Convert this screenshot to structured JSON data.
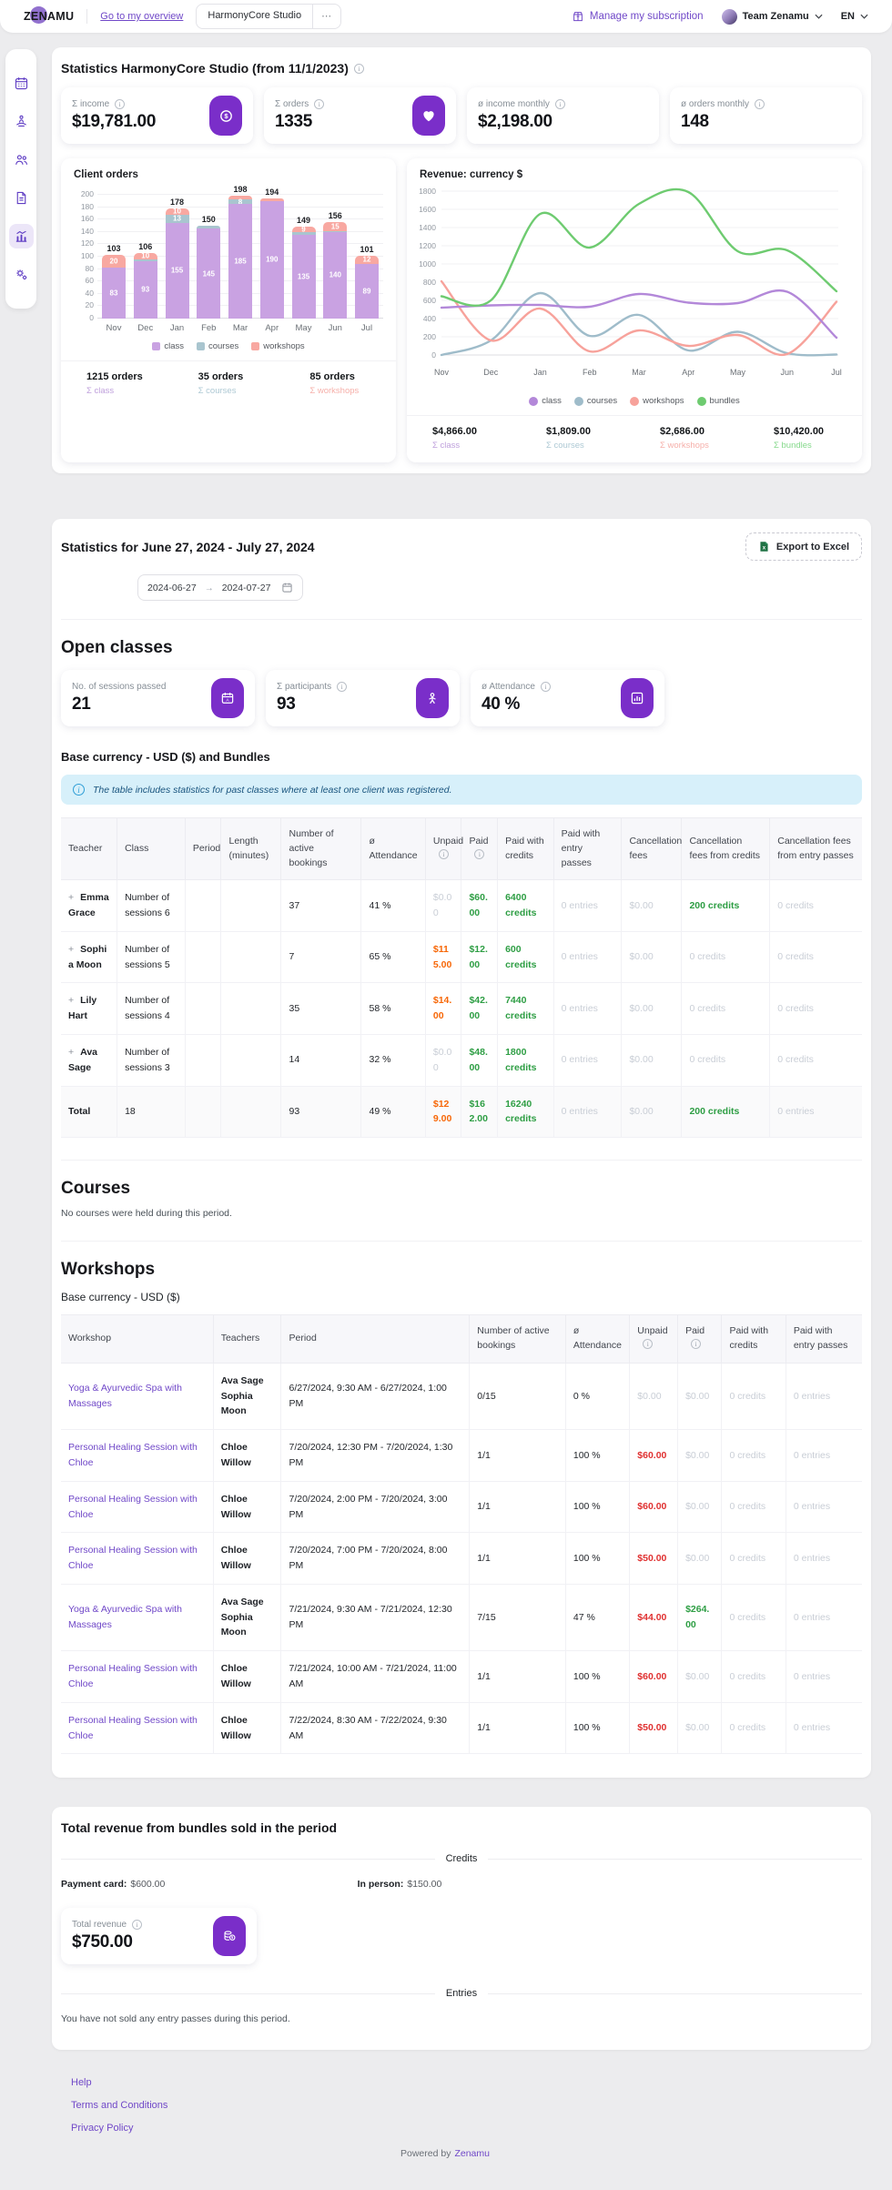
{
  "colors": {
    "accent_purple": "#7a2ec9",
    "link_purple": "#7048c8",
    "paid_green": "#2e9e44",
    "unpaid_orange": "#f76707",
    "unpaid_red": "#e03131",
    "banner_blue_bg": "#d7f0fa"
  },
  "header": {
    "logo": "ZENAMU",
    "overview_link": "Go to my overview",
    "studio": "HarmonyCore Studio",
    "more": "⋯",
    "subscription": "Manage my subscription",
    "team": "Team Zenamu",
    "lang": "EN"
  },
  "sidebar": {
    "items": [
      {
        "icon": "calendar"
      },
      {
        "icon": "yoga"
      },
      {
        "icon": "clients"
      },
      {
        "icon": "documents"
      },
      {
        "icon": "statistics",
        "active": true
      },
      {
        "icon": "settings"
      }
    ]
  },
  "overview": {
    "title": "Statistics HarmonyCore Studio (from 11/1/2023)",
    "kpis": [
      {
        "label": "Σ income",
        "value": "$19,781.00",
        "icon": "dollar-coin"
      },
      {
        "label": "Σ orders",
        "value": "1335",
        "icon": "heart"
      },
      {
        "label": "ø income monthly",
        "value": "$2,198.00"
      },
      {
        "label": "ø orders monthly",
        "value": "148"
      }
    ],
    "orders_summary": [
      {
        "value": "1215 orders",
        "label": "Σ class"
      },
      {
        "value": "35 orders",
        "label": "Σ courses"
      },
      {
        "value": "85 orders",
        "label": "Σ workshops"
      }
    ],
    "revenue_summary": [
      {
        "value": "$4,866.00",
        "label": "Σ class"
      },
      {
        "value": "$1,809.00",
        "label": "Σ courses"
      },
      {
        "value": "$2,686.00",
        "label": "Σ workshops"
      },
      {
        "value": "$10,420.00",
        "label": "Σ bundles"
      }
    ]
  },
  "chart_data": [
    {
      "type": "bar",
      "title": "Client orders",
      "categories": [
        "Nov",
        "Dec",
        "Jan",
        "Feb",
        "Mar",
        "Apr",
        "May",
        "Jun",
        "Jul"
      ],
      "series": [
        {
          "name": "class",
          "color": "#c9a2e2",
          "values": [
            83,
            93,
            155,
            145,
            185,
            190,
            135,
            140,
            89
          ]
        },
        {
          "name": "courses",
          "color": "#a9c5cf",
          "values": [
            0,
            3,
            13,
            5,
            8,
            0,
            5,
            1,
            0
          ]
        },
        {
          "name": "workshops",
          "color": "#f8a8a1",
          "values": [
            20,
            10,
            10,
            0,
            5,
            4,
            9,
            15,
            12
          ]
        }
      ],
      "totals": [
        103,
        106,
        178,
        150,
        198,
        194,
        149,
        156,
        101
      ],
      "ylim": [
        0,
        200
      ],
      "ytick": 20,
      "label_min": 8,
      "legend_position": "bottom",
      "grid": true
    },
    {
      "type": "line",
      "title": "Revenue: currency $",
      "x": [
        "Nov",
        "Dec",
        "Jan",
        "Feb",
        "Mar",
        "Apr",
        "May",
        "Jun",
        "Jul"
      ],
      "series": [
        {
          "name": "courses",
          "color": "#9fbcca",
          "values": [
            0,
            160,
            680,
            210,
            440,
            50,
            255,
            20,
            5
          ]
        },
        {
          "name": "workshops",
          "color": "#f7a29b",
          "values": [
            810,
            160,
            510,
            40,
            270,
            100,
            220,
            10,
            585
          ]
        },
        {
          "name": "class",
          "color": "#b388d9",
          "values": [
            520,
            545,
            550,
            530,
            670,
            575,
            570,
            695,
            190
          ]
        },
        {
          "name": "bundles",
          "color": "#6ecb70",
          "values": [
            645,
            600,
            1550,
            1180,
            1660,
            1790,
            1140,
            1150,
            700
          ]
        }
      ],
      "legend_order": [
        "class",
        "courses",
        "workshops",
        "bundles"
      ],
      "ylim": [
        0,
        1800
      ],
      "ytick": 200,
      "legend_position": "bottom",
      "grid": true
    }
  ],
  "period": {
    "title": "Statistics for June 27, 2024 - July 27, 2024",
    "export_label": "Export to Excel",
    "date_from": "2024-06-27",
    "date_to": "2024-07-27",
    "open_classes": {
      "title": "Open classes",
      "kpis": [
        {
          "label": "No. of sessions passed",
          "value": "21",
          "icon": "calendar-badge",
          "info": false
        },
        {
          "label": "Σ participants",
          "value": "93",
          "icon": "participants-badge",
          "info": true
        },
        {
          "label": "ø Attendance",
          "value": "40 %",
          "icon": "attendance-badge",
          "info": true
        }
      ]
    },
    "base_currency_title": "Base currency - USD ($) and Bundles",
    "banner": "The table includes statistics for past classes where at least one client was registered.",
    "classes_table": {
      "widths": [
        7,
        8.5,
        4.5,
        7.5,
        10,
        8,
        4.5,
        4.5,
        7,
        8.5,
        7.5,
        11,
        11.5
      ],
      "headers": [
        "Teacher",
        "Class",
        "Period",
        {
          "t": "Length (minutes)"
        },
        {
          "t": "Number of active bookings"
        },
        {
          "t": "ø Attendance"
        },
        {
          "t": "Unpaid",
          "info": true
        },
        {
          "t": "Paid",
          "info": true
        },
        {
          "t": "Paid with credits"
        },
        {
          "t": "Paid with entry passes"
        },
        {
          "t": "Cancellation fees"
        },
        {
          "t": "Cancellation fees from credits"
        },
        {
          "t": "Cancellation fees from entry passes"
        }
      ],
      "rows": [
        {
          "cells": [
            {
              "t": "Emma Grace",
              "c": "teacher",
              "plus": true
            },
            "Number of sessions 6",
            "",
            "",
            "37",
            "41 %",
            {
              "t": "$0.00",
              "c": "muted"
            },
            {
              "t": "$60.00",
              "c": "green"
            },
            {
              "t": "6400 credits",
              "c": "green"
            },
            {
              "t": "0 entries",
              "c": "muted"
            },
            {
              "t": "$0.00",
              "c": "muted"
            },
            {
              "t": "200 credits",
              "c": "green"
            },
            {
              "t": "0 credits",
              "c": "muted"
            }
          ]
        },
        {
          "cells": [
            {
              "t": "Sophia Moon",
              "c": "teacher",
              "plus": true
            },
            "Number of sessions 5",
            "",
            "",
            "7",
            "65 %",
            {
              "t": "$115.00",
              "c": "orange"
            },
            {
              "t": "$12.00",
              "c": "green"
            },
            {
              "t": "600 credits",
              "c": "green"
            },
            {
              "t": "0 entries",
              "c": "muted"
            },
            {
              "t": "$0.00",
              "c": "muted"
            },
            {
              "t": "0 credits",
              "c": "muted"
            },
            {
              "t": "0 credits",
              "c": "muted"
            }
          ]
        },
        {
          "cells": [
            {
              "t": "Lily Hart",
              "c": "teacher",
              "plus": true
            },
            "Number of sessions 4",
            "",
            "",
            "35",
            "58 %",
            {
              "t": "$14.00",
              "c": "orange"
            },
            {
              "t": "$42.00",
              "c": "green"
            },
            {
              "t": "7440 credits",
              "c": "green"
            },
            {
              "t": "0 entries",
              "c": "muted"
            },
            {
              "t": "$0.00",
              "c": "muted"
            },
            {
              "t": "0 credits",
              "c": "muted"
            },
            {
              "t": "0 credits",
              "c": "muted"
            }
          ]
        },
        {
          "cells": [
            {
              "t": "Ava Sage",
              "c": "teacher",
              "plus": true
            },
            "Number of sessions 3",
            "",
            "",
            "14",
            "32 %",
            {
              "t": "$0.00",
              "c": "muted"
            },
            {
              "t": "$48.00",
              "c": "green"
            },
            {
              "t": "1800 credits",
              "c": "green"
            },
            {
              "t": "0 entries",
              "c": "muted"
            },
            {
              "t": "$0.00",
              "c": "muted"
            },
            {
              "t": "0 credits",
              "c": "muted"
            },
            {
              "t": "0 credits",
              "c": "muted"
            }
          ]
        },
        {
          "total": true,
          "cells": [
            {
              "t": "Total",
              "c": "teacher"
            },
            "18",
            "",
            "",
            "93",
            "49 %",
            {
              "t": "$129.00",
              "c": "orange"
            },
            {
              "t": "$162.00",
              "c": "green"
            },
            {
              "t": "16240 credits",
              "c": "green"
            },
            {
              "t": "0 entries",
              "c": "muted"
            },
            {
              "t": "$0.00",
              "c": "muted"
            },
            {
              "t": "200 credits",
              "c": "green"
            },
            {
              "t": "0 entries",
              "c": "muted"
            }
          ]
        }
      ]
    },
    "courses": {
      "title": "Courses",
      "empty": "No courses were held during this period."
    },
    "workshops": {
      "title": "Workshops",
      "subtitle": "Base currency - USD ($)",
      "table": {
        "widths": [
          19,
          8.5,
          23.5,
          12,
          8,
          6,
          5.5,
          8,
          9.5
        ],
        "headers": [
          "Workshop",
          "Teachers",
          "Period",
          {
            "t": "Number of active bookings"
          },
          {
            "t": "ø Attendance"
          },
          {
            "t": "Unpaid",
            "info": true
          },
          {
            "t": "Paid",
            "info": true
          },
          {
            "t": "Paid with credits"
          },
          {
            "t": "Paid with entry passes"
          }
        ],
        "rows": [
          {
            "cells": [
              {
                "t": "Yoga & Ayurvedic Spa with Massages",
                "c": "link"
              },
              {
                "t": "Ava Sage Sophia Moon",
                "c": "teacher"
              },
              "6/27/2024, 9:30 AM - 6/27/2024, 1:00 PM",
              "0/15",
              "0 %",
              {
                "t": "$0.00",
                "c": "muted"
              },
              {
                "t": "$0.00",
                "c": "muted"
              },
              {
                "t": "0 credits",
                "c": "muted"
              },
              {
                "t": "0 entries",
                "c": "muted"
              }
            ]
          },
          {
            "cells": [
              {
                "t": "Personal Healing Session with Chloe",
                "c": "link"
              },
              {
                "t": "Chloe Willow",
                "c": "teacher"
              },
              "7/20/2024, 12:30 PM - 7/20/2024, 1:30 PM",
              "1/1",
              "100 %",
              {
                "t": "$60.00",
                "c": "red"
              },
              {
                "t": "$0.00",
                "c": "muted"
              },
              {
                "t": "0 credits",
                "c": "muted"
              },
              {
                "t": "0 entries",
                "c": "muted"
              }
            ]
          },
          {
            "cells": [
              {
                "t": "Personal Healing Session with Chloe",
                "c": "link"
              },
              {
                "t": "Chloe Willow",
                "c": "teacher"
              },
              "7/20/2024, 2:00 PM - 7/20/2024, 3:00 PM",
              "1/1",
              "100 %",
              {
                "t": "$60.00",
                "c": "red"
              },
              {
                "t": "$0.00",
                "c": "muted"
              },
              {
                "t": "0 credits",
                "c": "muted"
              },
              {
                "t": "0 entries",
                "c": "muted"
              }
            ]
          },
          {
            "cells": [
              {
                "t": "Personal Healing Session with Chloe",
                "c": "link"
              },
              {
                "t": "Chloe Willow",
                "c": "teacher"
              },
              "7/20/2024, 7:00 PM - 7/20/2024, 8:00 PM",
              "1/1",
              "100 %",
              {
                "t": "$50.00",
                "c": "red"
              },
              {
                "t": "$0.00",
                "c": "muted"
              },
              {
                "t": "0 credits",
                "c": "muted"
              },
              {
                "t": "0 entries",
                "c": "muted"
              }
            ]
          },
          {
            "cells": [
              {
                "t": "Yoga & Ayurvedic Spa with Massages",
                "c": "link"
              },
              {
                "t": "Ava Sage Sophia Moon",
                "c": "teacher"
              },
              "7/21/2024, 9:30 AM - 7/21/2024, 12:30 PM",
              "7/15",
              "47 %",
              {
                "t": "$44.00",
                "c": "red"
              },
              {
                "t": "$264.00",
                "c": "green"
              },
              {
                "t": "0 credits",
                "c": "muted"
              },
              {
                "t": "0 entries",
                "c": "muted"
              }
            ]
          },
          {
            "cells": [
              {
                "t": "Personal Healing Session with Chloe",
                "c": "link"
              },
              {
                "t": "Chloe Willow",
                "c": "teacher"
              },
              "7/21/2024, 10:00 AM - 7/21/2024, 11:00 AM",
              "1/1",
              "100 %",
              {
                "t": "$60.00",
                "c": "red"
              },
              {
                "t": "$0.00",
                "c": "muted"
              },
              {
                "t": "0 credits",
                "c": "muted"
              },
              {
                "t": "0 entries",
                "c": "muted"
              }
            ]
          },
          {
            "cells": [
              {
                "t": "Personal Healing Session with Chloe",
                "c": "link"
              },
              {
                "t": "Chloe Willow",
                "c": "teacher"
              },
              "7/22/2024, 8:30 AM - 7/22/2024, 9:30 AM",
              "1/1",
              "100 %",
              {
                "t": "$50.00",
                "c": "red"
              },
              {
                "t": "$0.00",
                "c": "muted"
              },
              {
                "t": "0 credits",
                "c": "muted"
              },
              {
                "t": "0 entries",
                "c": "muted"
              }
            ]
          }
        ]
      }
    }
  },
  "bundles": {
    "title": "Total revenue from bundles sold in the period",
    "credits_label": "Credits",
    "payment_card_label": "Payment card:",
    "payment_card_value": "$600.00",
    "in_person_label": "In person:",
    "in_person_value": "$150.00",
    "total_revenue_label": "Total revenue",
    "total_revenue_value": "$750.00",
    "entries_label": "Entries",
    "entries_empty": "You have not sold any entry passes during this period."
  },
  "footer": {
    "links": [
      "Help",
      "Terms and Conditions",
      "Privacy Policy"
    ],
    "powered_prefix": "Powered by",
    "powered_brand": "Zenamu"
  }
}
